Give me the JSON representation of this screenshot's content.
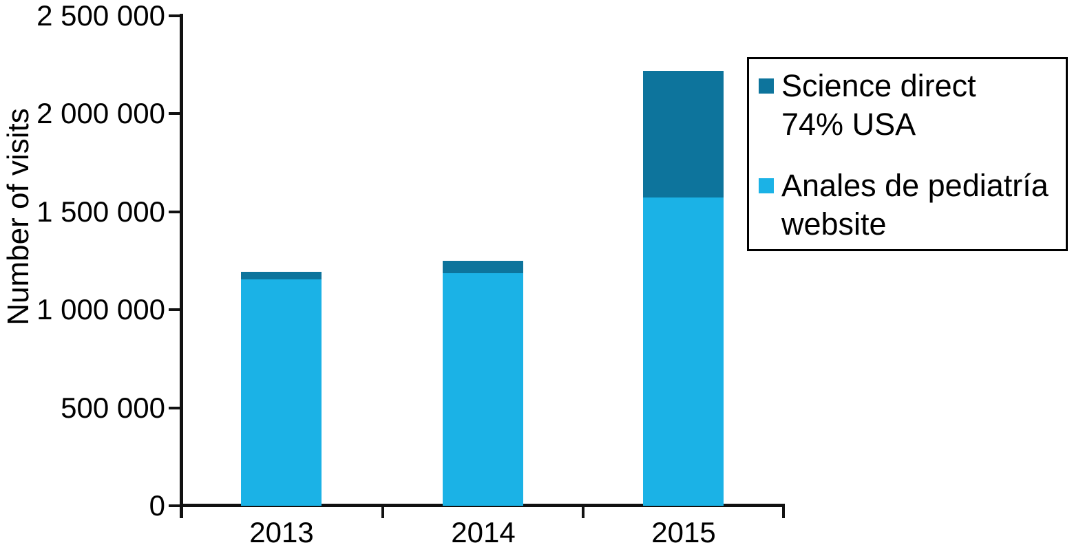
{
  "chart_data": {
    "type": "bar",
    "stacked": true,
    "stack_order": "series array is bottom-to-top",
    "title": "",
    "xlabel": "",
    "ylabel": "Number of visits",
    "categories": [
      "2013",
      "2014",
      "2015"
    ],
    "series": [
      {
        "name": "Anales de pediatría website",
        "color": "#1BB2E6",
        "values": [
          1155000,
          1187000,
          1573000
        ]
      },
      {
        "name": "Science direct 74% USA",
        "color": "#0D749C",
        "values": [
          40000,
          63000,
          645000
        ]
      }
    ],
    "totals": [
      1195000,
      1250000,
      2218000
    ],
    "ylim": [
      0,
      2500000
    ],
    "yticks": {
      "values": [
        0,
        500000,
        1000000,
        1500000,
        2000000,
        2500000
      ],
      "labels": [
        "0",
        "500 000",
        "1 000 000",
        "1 500 000",
        "2 000 000",
        "2 500 000"
      ]
    },
    "grid": false,
    "axis_color": "#111111",
    "legend": {
      "position": "upper right",
      "border_color": "#000000",
      "entries": [
        {
          "lines": [
            "Science direct",
            "74% USA"
          ],
          "color": "#0D749C"
        },
        {
          "lines": [
            "Anales de pediatría",
            "website"
          ],
          "color": "#1BB2E6"
        }
      ]
    }
  }
}
